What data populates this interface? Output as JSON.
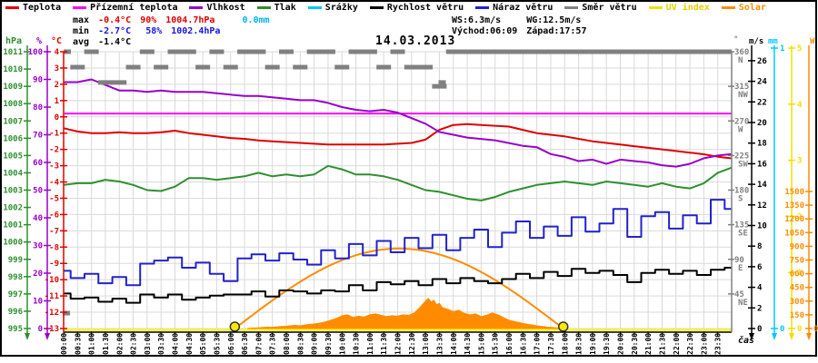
{
  "header": {
    "date": "14.03.2013",
    "stats": {
      "max_label": "max",
      "max_temp": "-0.4°C",
      "max_hum": "90%",
      "max_pres": "1004.7hPa",
      "precip_total": "0.0mm",
      "min_label": "min",
      "min_temp": "-2.7°C",
      "min_hum": "58%",
      "min_pres": "1002.4hPa",
      "avg_label": "avg",
      "avg_temp": "-1.4°C",
      "ws": "WS:6.3m/s",
      "wg": "WG:12.5m/s",
      "sunrise": "Východ:06:09",
      "sunset": "Západ:17:57"
    }
  },
  "legend": {
    "items": [
      {
        "label": "Teplota",
        "color": "#e00000",
        "text": "#000000"
      },
      {
        "label": "Přízemní teplota",
        "color": "#ff00ff",
        "text": "#000000"
      },
      {
        "label": "Vlhkost",
        "color": "#9900cc",
        "text": "#000000"
      },
      {
        "label": "Tlak",
        "color": "#2f8f2f",
        "text": "#000000"
      },
      {
        "label": "Srážky",
        "color": "#00c8ff",
        "text": "#000000"
      },
      {
        "label": "Rychlost větru",
        "color": "#000000",
        "text": "#000000"
      },
      {
        "label": "Náraz větru",
        "color": "#2222cc",
        "text": "#000000"
      },
      {
        "label": "Směr větru",
        "color": "#808080",
        "text": "#000000"
      },
      {
        "label": "UV index",
        "color": "#f0e000",
        "text": "#e8d000"
      },
      {
        "label": "Solar",
        "color": "#ff8c00",
        "text": "#ff8c00"
      }
    ]
  },
  "axes": {
    "hpa": {
      "header": "hPa",
      "color": "#2f8f2f",
      "ticks": [
        1011,
        1010,
        1009,
        1008,
        1007,
        1006,
        1005,
        1004,
        1003,
        1002,
        1001,
        1000,
        999,
        998,
        997,
        996,
        995
      ]
    },
    "pct": {
      "header": "%",
      "color": "#9900cc",
      "ticks": [
        100,
        90,
        80,
        70,
        60,
        50,
        40,
        30,
        20,
        10,
        0
      ]
    },
    "temp": {
      "header": "°C",
      "color": "#e00000",
      "ticks": [
        4,
        3,
        2,
        1,
        0,
        -1,
        -2,
        -3,
        -4,
        -5,
        -6,
        -7,
        -8,
        -9,
        -10,
        -11,
        -12,
        -13
      ]
    },
    "dir": {
      "header": "°",
      "color": "#808080",
      "ticks": [
        {
          "deg": 360,
          "label": "N"
        },
        {
          "deg": 315,
          "label": "NW"
        },
        {
          "deg": 270,
          "label": "W"
        },
        {
          "deg": 225,
          "label": "SW"
        },
        {
          "deg": 180,
          "label": "S"
        },
        {
          "deg": 135,
          "label": "SE"
        },
        {
          "deg": 90,
          "label": "E"
        },
        {
          "deg": 45,
          "label": "NE"
        }
      ]
    },
    "ms": {
      "header": "m/s",
      "color": "#000000",
      "ticks": [
        0,
        2,
        4,
        6,
        8,
        10,
        12,
        14,
        16,
        18,
        20,
        22,
        24,
        26
      ]
    },
    "mm": {
      "header": "mm",
      "color": "#00c8ff",
      "ticks": [
        0,
        1
      ]
    },
    "uv": {
      "header": "",
      "color": "#f0e000",
      "ticks": [
        0,
        1,
        2,
        3,
        4,
        5
      ]
    },
    "solar": {
      "header": "W",
      "color": "#ff8c00",
      "ticks": [
        0,
        150,
        300,
        450,
        600,
        750,
        900,
        1050,
        1200,
        1350,
        1500
      ]
    }
  },
  "xaxis": {
    "label": "čas",
    "times": [
      "00:00",
      "00:30",
      "01:00",
      "01:30",
      "02:00",
      "02:30",
      "03:00",
      "03:30",
      "04:00",
      "04:30",
      "05:00",
      "05:30",
      "06:00",
      "06:30",
      "07:00",
      "07:30",
      "08:00",
      "08:30",
      "09:00",
      "09:30",
      "10:00",
      "10:30",
      "11:00",
      "11:30",
      "12:00",
      "12:30",
      "13:00",
      "13:30",
      "14:00",
      "14:30",
      "15:00",
      "15:30",
      "16:00",
      "16:30",
      "17:00",
      "17:30",
      "18:00",
      "18:30",
      "19:00",
      "19:30",
      "20:00",
      "20:30",
      "21:00",
      "21:30",
      "22:00",
      "22:30",
      "23:00",
      "23:30"
    ]
  },
  "chart_data": {
    "type": "line",
    "x_unit": "hours",
    "x_step": 0.5,
    "x_range": [
      0,
      24
    ],
    "series": [
      {
        "name": "Teplota",
        "unit": "°C",
        "color": "#e00000",
        "values": [
          -0.7,
          -0.9,
          -1.0,
          -1.0,
          -0.95,
          -1.0,
          -1.0,
          -0.95,
          -0.85,
          -1.0,
          -1.1,
          -1.2,
          -1.3,
          -1.35,
          -1.45,
          -1.5,
          -1.55,
          -1.6,
          -1.65,
          -1.7,
          -1.7,
          -1.7,
          -1.7,
          -1.7,
          -1.65,
          -1.6,
          -1.4,
          -0.8,
          -0.5,
          -0.45,
          -0.5,
          -0.55,
          -0.6,
          -0.8,
          -1.0,
          -1.1,
          -1.2,
          -1.35,
          -1.5,
          -1.6,
          -1.7,
          -1.8,
          -1.9,
          -2.0,
          -2.1,
          -2.2,
          -2.3,
          -2.45,
          -2.55
        ]
      },
      {
        "name": "Přízemní teplota",
        "unit": "°C",
        "color": "#ff00ff",
        "constant": 0.2
      },
      {
        "name": "Vlhkost",
        "unit": "%",
        "color": "#9900cc",
        "values": [
          89,
          89,
          90,
          88,
          86,
          86,
          85.5,
          86,
          85.5,
          85.5,
          85.5,
          85,
          84.5,
          84,
          84,
          83.5,
          83,
          82.5,
          82.5,
          81.5,
          80,
          79,
          78.5,
          79,
          78,
          76,
          74,
          71,
          70,
          69,
          68.5,
          68,
          67,
          66,
          65.5,
          63,
          62,
          60.5,
          61,
          59.5,
          61,
          60.5,
          60,
          59,
          58.5,
          59.5,
          61.5,
          62.5,
          63
        ]
      },
      {
        "name": "Tlak",
        "unit": "hPa",
        "color": "#2f8f2f",
        "values": [
          1003.3,
          1003.4,
          1003.4,
          1003.6,
          1003.5,
          1003.3,
          1003.0,
          1002.95,
          1003.2,
          1003.7,
          1003.7,
          1003.6,
          1003.7,
          1003.8,
          1004.0,
          1003.8,
          1003.9,
          1003.8,
          1003.9,
          1004.4,
          1004.2,
          1003.9,
          1003.9,
          1003.8,
          1003.6,
          1003.3,
          1003.0,
          1002.9,
          1002.7,
          1002.5,
          1002.4,
          1002.6,
          1002.9,
          1003.1,
          1003.3,
          1003.4,
          1003.5,
          1003.4,
          1003.3,
          1003.5,
          1003.4,
          1003.3,
          1003.2,
          1003.4,
          1003.2,
          1003.1,
          1003.4,
          1004.0,
          1004.3
        ]
      },
      {
        "name": "Srážky",
        "unit": "mm",
        "color": "#00c8ff",
        "constant": 0
      },
      {
        "name": "Rychlost větru",
        "unit": "m/s",
        "color": "#000000",
        "step": true,
        "values": [
          3.4,
          2.9,
          3.0,
          2.6,
          2.9,
          2.5,
          3.3,
          3.0,
          3.3,
          2.8,
          3.0,
          3.2,
          3.3,
          3.3,
          3.6,
          3.1,
          3.7,
          3.6,
          3.4,
          3.7,
          3.6,
          4.2,
          3.7,
          4.5,
          4.3,
          4.6,
          4.2,
          4.8,
          4.4,
          4.9,
          4.6,
          4.4,
          4.8,
          5.3,
          4.9,
          5.5,
          5.1,
          5.8,
          5.4,
          5.6,
          5.2,
          4.5,
          5.4,
          5.7,
          5.3,
          5.6,
          5.2,
          5.7,
          5.9
        ]
      },
      {
        "name": "Náraz větru",
        "unit": "m/s",
        "color": "#2222cc",
        "step": true,
        "values": [
          5.6,
          4.9,
          5.3,
          4.4,
          5.0,
          4.2,
          6.3,
          6.6,
          6.9,
          5.9,
          6.4,
          5.3,
          4.6,
          6.8,
          7.2,
          6.6,
          7.3,
          6.7,
          6.2,
          7.6,
          6.8,
          8.2,
          7.1,
          8.5,
          7.4,
          8.8,
          7.8,
          9.1,
          7.6,
          8.8,
          9.6,
          7.9,
          9.3,
          10.4,
          8.8,
          9.9,
          9.0,
          10.8,
          9.4,
          10.2,
          11.6,
          8.9,
          10.9,
          11.3,
          9.7,
          11.0,
          10.2,
          12.5,
          11.6
        ]
      },
      {
        "name": "Směr větru",
        "unit": "°",
        "color": "#808080",
        "dashes": true,
        "values": [
          360,
          340,
          360,
          320,
          320,
          340,
          360,
          340,
          360,
          360,
          340,
          360,
          340,
          360,
          360,
          340,
          360,
          340,
          360,
          360,
          340,
          360,
          360,
          340,
          360,
          340,
          340,
          315,
          360,
          360,
          360,
          360,
          360,
          360,
          360,
          360,
          360,
          360,
          360,
          360,
          360,
          360,
          360,
          360,
          360,
          360,
          360,
          360,
          360
        ],
        "extra_points": [
          {
            "t": 0.1,
            "deg": 20
          },
          {
            "t": 13.6,
            "deg": 320
          }
        ]
      },
      {
        "name": "UV index",
        "unit": "UV",
        "color": "#ffff00",
        "constant": 0
      },
      {
        "name": "Solar",
        "unit": "W",
        "color": "#ff8c00",
        "fill": true,
        "points": [
          [
            6.6,
            0
          ],
          [
            6.8,
            5
          ],
          [
            7.0,
            8
          ],
          [
            7.3,
            15
          ],
          [
            7.5,
            12
          ],
          [
            7.8,
            22
          ],
          [
            8.0,
            25
          ],
          [
            8.3,
            35
          ],
          [
            8.5,
            30
          ],
          [
            8.8,
            45
          ],
          [
            9.0,
            50
          ],
          [
            9.3,
            65
          ],
          [
            9.5,
            80
          ],
          [
            9.8,
            110
          ],
          [
            10.0,
            140
          ],
          [
            10.2,
            150
          ],
          [
            10.4,
            120
          ],
          [
            10.6,
            135
          ],
          [
            10.8,
            125
          ],
          [
            11.0,
            150
          ],
          [
            11.2,
            160
          ],
          [
            11.4,
            145
          ],
          [
            11.6,
            130
          ],
          [
            11.8,
            140
          ],
          [
            12.0,
            135
          ],
          [
            12.2,
            150
          ],
          [
            12.4,
            145
          ],
          [
            12.6,
            170
          ],
          [
            12.8,
            230
          ],
          [
            13.0,
            300
          ],
          [
            13.1,
            330
          ],
          [
            13.2,
            290
          ],
          [
            13.3,
            310
          ],
          [
            13.4,
            260
          ],
          [
            13.5,
            275
          ],
          [
            13.6,
            230
          ],
          [
            13.8,
            210
          ],
          [
            14.0,
            185
          ],
          [
            14.2,
            200
          ],
          [
            14.4,
            165
          ],
          [
            14.6,
            150
          ],
          [
            14.8,
            160
          ],
          [
            15.0,
            130
          ],
          [
            15.2,
            145
          ],
          [
            15.4,
            170
          ],
          [
            15.6,
            150
          ],
          [
            15.8,
            120
          ],
          [
            16.0,
            90
          ],
          [
            16.3,
            70
          ],
          [
            16.6,
            50
          ],
          [
            17.0,
            30
          ],
          [
            17.4,
            15
          ],
          [
            17.8,
            5
          ],
          [
            18.0,
            0
          ]
        ]
      }
    ],
    "solar_model": {
      "sunrise_hour": 6.15,
      "sunset_hour": 17.95,
      "peak_w": 875
    },
    "sun_markers": {
      "color": "#ffe800",
      "sunrise_hour": 6.15,
      "sunset_hour": 17.95
    }
  }
}
